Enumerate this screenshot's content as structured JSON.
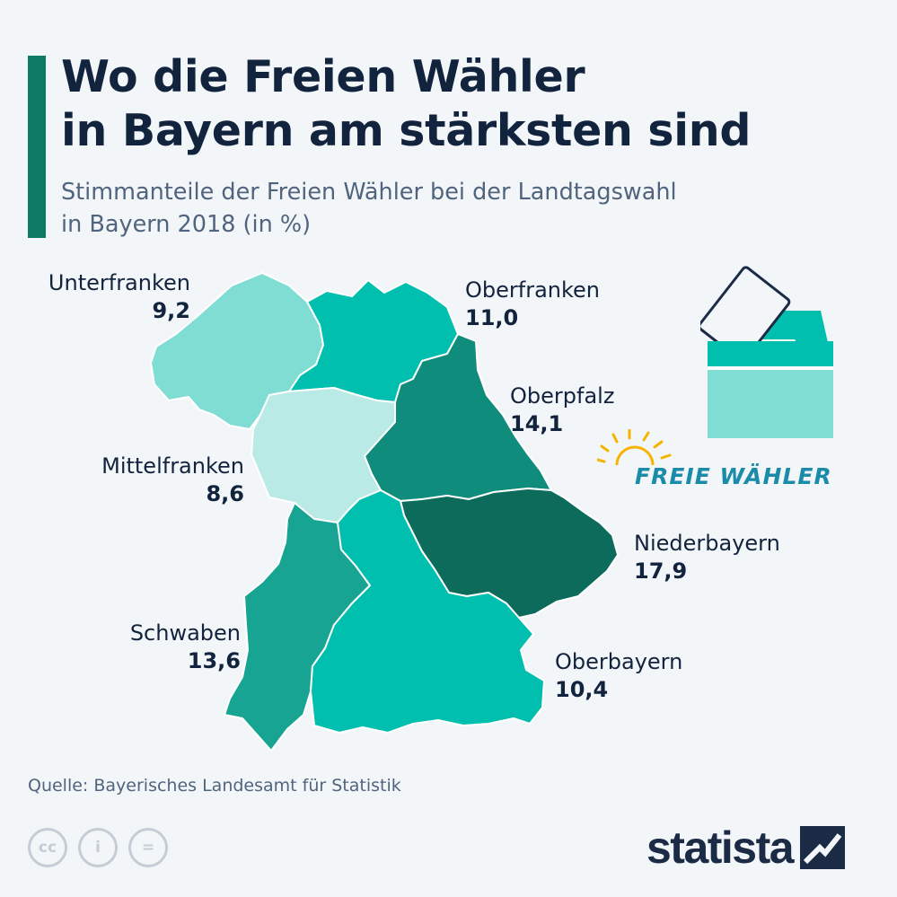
{
  "title": {
    "line1": "Wo die Freien Wähler",
    "line2": "in Bayern am stärksten sind"
  },
  "subtitle": {
    "line1": "Stimmanteile der Freien Wähler bei der Landtagswahl",
    "line2": "in Bayern 2018 (in %)"
  },
  "colors": {
    "accent": "#0f7a63",
    "unterfranken": "#7fddd3",
    "oberfranken": "#00bfae",
    "oberpfalz": "#0f8c7b",
    "mittelfranken": "#b9eae5",
    "niederbayern": "#0d6b5c",
    "schwaben": "#17a493",
    "oberbayern": "#00bfae",
    "logo_text": "#1a8ba8",
    "logo_sun": "#f5b400"
  },
  "regions": {
    "unterfranken": {
      "name": "Unterfranken",
      "value": "9,2"
    },
    "oberfranken": {
      "name": "Oberfranken",
      "value": "11,0"
    },
    "oberpfalz": {
      "name": "Oberpfalz",
      "value": "14,1"
    },
    "mittelfranken": {
      "name": "Mittelfranken",
      "value": "8,6"
    },
    "niederbayern": {
      "name": "Niederbayern",
      "value": "17,9"
    },
    "schwaben": {
      "name": "Schwaben",
      "value": "13,6"
    },
    "oberbayern": {
      "name": "Oberbayern",
      "value": "10,4"
    }
  },
  "party_logo": {
    "text": "FREIE WÄHLER"
  },
  "icons": {
    "ballot": "ballot-box-icon",
    "sun": "sun-icon"
  },
  "source": "Quelle: Bayerisches Landesamt für Statistik",
  "license": {
    "cc": "cc",
    "by": "i",
    "nd": "="
  },
  "brand": {
    "name": "statista"
  }
}
